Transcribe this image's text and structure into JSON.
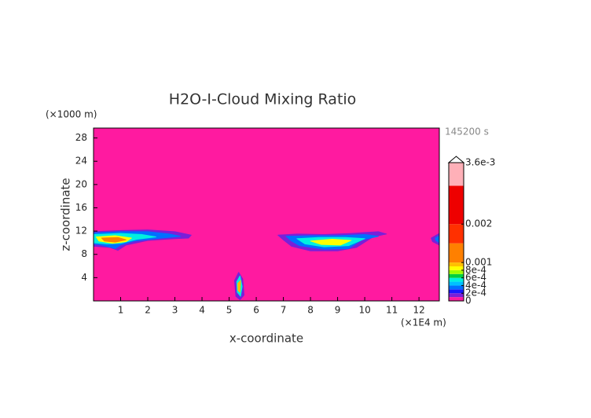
{
  "chart_data": {
    "type": "contour",
    "title": "H2O-I-Cloud Mixing Ratio",
    "y_unit": "(×1000 m)",
    "x_unit": "(×1E4 m)",
    "time": "145200 s",
    "xlabel": "x-coordinate",
    "ylabel": "z-coordinate",
    "xlim": [
      0,
      12.75
    ],
    "ylim": [
      0,
      29.7
    ],
    "xticks": [
      1,
      2,
      3,
      4,
      5,
      6,
      7,
      8,
      9,
      10,
      11,
      12
    ],
    "yticks": [
      4,
      8,
      12,
      16,
      20,
      24,
      28
    ],
    "background": "#ff1aa0",
    "levels": [
      0,
      0.0001,
      0.0002,
      0.0003,
      0.0004,
      0.0005,
      0.0006,
      0.0007,
      0.0008,
      0.0009,
      0.001,
      0.0015,
      0.002,
      0.003,
      0.0036
    ],
    "colors": [
      "#ff1aa0",
      "#7a20d8",
      "#1818ff",
      "#0070ff",
      "#00c0ff",
      "#00f0e0",
      "#00d040",
      "#a0ff00",
      "#ffff00",
      "#ffc000",
      "#ff8000",
      "#ff3000",
      "#ee0000",
      "#ffb0b8"
    ],
    "colorbar_lim": [
      0,
      0.0036
    ],
    "colorbar_ticks": [
      0,
      {
        "value": 0.0002,
        "label": "2e-4"
      },
      {
        "value": 0.0004,
        "label": "4e-4"
      },
      {
        "value": 0.0006,
        "label": "6e-4"
      },
      {
        "value": 0.0008,
        "label": "8e-4"
      },
      0.001,
      0.002,
      {
        "value": 0.0036,
        "label": "3.6e-3"
      }
    ],
    "contours": [
      {
        "level": 0.0001,
        "x": [
          0,
          1,
          2,
          3,
          3.6,
          3.5,
          3,
          2,
          1.2,
          0.9,
          0.6,
          0
        ],
        "z": [
          11.9,
          12.1,
          12.2,
          11.9,
          11.3,
          10.8,
          10.7,
          10.4,
          9.6,
          8.7,
          9.2,
          9.4
        ]
      },
      {
        "level": 0.0003,
        "x": [
          0,
          1,
          2,
          2.8,
          3.2,
          2.5,
          1.5,
          1,
          0.8,
          0.3,
          0
        ],
        "z": [
          11.7,
          11.9,
          11.9,
          11.5,
          11.1,
          10.8,
          10.3,
          9.6,
          9.0,
          9.6,
          9.8
        ]
      },
      {
        "level": 0.0005,
        "x": [
          0,
          1,
          1.8,
          2.3,
          1.6,
          1.0,
          0.5,
          0
        ],
        "z": [
          11.4,
          11.6,
          11.4,
          11.0,
          10.6,
          9.9,
          9.8,
          10.0
        ]
      },
      {
        "level": 0.0008,
        "x": [
          0.1,
          0.8,
          1.4,
          1.2,
          0.7,
          0.2
        ],
        "z": [
          11.0,
          11.2,
          10.8,
          10.2,
          9.9,
          10.3
        ]
      },
      {
        "level": 0.001,
        "x": [
          0.3,
          0.9,
          1.2,
          0.8,
          0.4
        ],
        "z": [
          10.8,
          10.9,
          10.5,
          10.1,
          10.3
        ]
      },
      {
        "level": 0.0001,
        "x": [
          6.8,
          7.5,
          8.5,
          9.5,
          10.5,
          10.8,
          10.3,
          9.7,
          9.0,
          8.0,
          7.3,
          7.0
        ],
        "z": [
          11.3,
          11.5,
          11.4,
          11.6,
          11.9,
          11.5,
          11.0,
          9.2,
          8.6,
          8.6,
          9.4,
          10.5
        ]
      },
      {
        "level": 0.0003,
        "x": [
          7.1,
          8,
          9,
          10,
          10.5,
          9.9,
          9.4,
          8.5,
          7.6,
          7.3
        ],
        "z": [
          11.1,
          11.2,
          11.2,
          11.4,
          11.1,
          10.5,
          9.0,
          8.9,
          9.5,
          10.3
        ]
      },
      {
        "level": 0.0005,
        "x": [
          7.5,
          8.3,
          9.3,
          10.0,
          9.4,
          8.5,
          7.8
        ],
        "z": [
          10.7,
          10.9,
          10.9,
          10.7,
          9.5,
          9.3,
          9.8
        ]
      },
      {
        "level": 0.0008,
        "x": [
          8.0,
          8.8,
          9.5,
          9.1,
          8.4
        ],
        "z": [
          10.3,
          10.6,
          10.4,
          9.6,
          9.7
        ]
      },
      {
        "level": 0.0001,
        "x": [
          5.2,
          5.35,
          5.5,
          5.55,
          5.4,
          5.25
        ],
        "z": [
          3.5,
          4.9,
          3.8,
          1.0,
          0.2,
          0.8
        ]
      },
      {
        "level": 0.0005,
        "x": [
          5.28,
          5.4,
          5.48,
          5.42,
          5.3
        ],
        "z": [
          3.3,
          4.3,
          2.5,
          0.8,
          1.5
        ]
      },
      {
        "level": 0.0009,
        "x": [
          5.32,
          5.42,
          5.4,
          5.33
        ],
        "z": [
          3.0,
          3.5,
          1.5,
          1.8
        ]
      },
      {
        "level": 0.0001,
        "x": [
          12.45,
          12.75,
          12.75,
          12.5
        ],
        "z": [
          10.8,
          11.6,
          9.6,
          10.2
        ]
      },
      {
        "level": 0.0003,
        "x": [
          12.6,
          12.75,
          12.75,
          12.62
        ],
        "z": [
          10.8,
          11.2,
          10.0,
          10.4
        ]
      }
    ]
  }
}
